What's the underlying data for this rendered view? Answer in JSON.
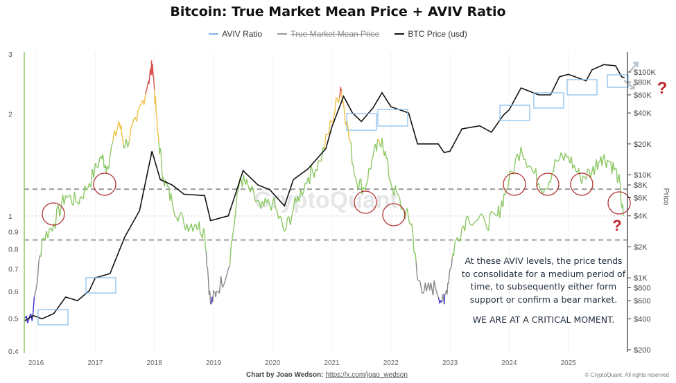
{
  "title": "Bitcoin: True Market Mean Price + AVIV Ratio",
  "legend": [
    {
      "label": "AVIV Ratio",
      "color": "#7fb2e5",
      "active": true
    },
    {
      "label": "True Market Mean Price",
      "color": "#999999",
      "active": false
    },
    {
      "label": "BTC Price (usd)",
      "color": "#111111",
      "active": true
    }
  ],
  "watermark": "CryptoQuant",
  "annotation": {
    "text": "At these AVIV levels, the price tends to consolidate for a medium period of time, to subsequently either form support or confirm a bear market.",
    "emphasis": "WE ARE AT A CRITICAL MOMENT."
  },
  "question_mark": "?",
  "footer": {
    "credit": "Chart by Joao Wedson:",
    "link": "https://x.com/joao_wedson",
    "copyright": "© CryptoQuant. All rights reserved"
  },
  "chart_data": {
    "type": "line",
    "title": "Bitcoin: True Market Mean Price + AVIV Ratio",
    "x_ticks": [
      "2016",
      "2017",
      "2018",
      "2019",
      "2020",
      "2021",
      "2022",
      "2023",
      "2024",
      "2025"
    ],
    "xlim": [
      2015.8,
      2026.0
    ],
    "left_axis": {
      "scale": "log",
      "ylim": [
        0.4,
        3
      ],
      "ticks": [
        "3",
        "2",
        "1",
        "0.9",
        "0.8",
        "0.7",
        "0.6",
        "0.5",
        "0.4"
      ],
      "tick_values": [
        3,
        2,
        1,
        0.9,
        0.8,
        0.7,
        0.6,
        0.5,
        0.4
      ]
    },
    "right_axis": {
      "label": "Price",
      "scale": "log",
      "ylim": [
        200,
        100000
      ],
      "ticks": [
        "$100K",
        "$80K",
        "$60K",
        "$40K",
        "$20K",
        "$10K",
        "$8K",
        "$6K",
        "$4K",
        "$2K",
        "$1K",
        "$800",
        "$600",
        "$400",
        "$200"
      ],
      "tick_values": [
        100000,
        80000,
        60000,
        40000,
        20000,
        10000,
        8000,
        6000,
        4000,
        2000,
        1000,
        800,
        600,
        400,
        200
      ]
    },
    "reference_lines": [
      {
        "value": 1.2,
        "style": "dashed"
      },
      {
        "value": 0.85,
        "style": "dashed"
      },
      {
        "value": 1.0,
        "style": "dotted"
      }
    ],
    "aviv_color_bands": [
      {
        "min": 2.3,
        "color": "#d9534f"
      },
      {
        "min": 1.65,
        "color": "#f0c040"
      },
      {
        "min": 0.75,
        "color": "#8cc864"
      },
      {
        "min": 0.57,
        "color": "#888888"
      },
      {
        "min": 0,
        "color": "#3a2fd0"
      }
    ],
    "series": [
      {
        "name": "BTC Price (usd)",
        "axis": "right",
        "color": "#111111",
        "x": [
          2015.8,
          2015.95,
          2016.1,
          2016.3,
          2016.5,
          2016.7,
          2016.9,
          2017.0,
          2017.25,
          2017.5,
          2017.75,
          2017.96,
          2018.1,
          2018.3,
          2018.5,
          2018.85,
          2018.95,
          2019.25,
          2019.5,
          2019.75,
          2019.95,
          2020.2,
          2020.35,
          2020.6,
          2020.9,
          2021.0,
          2021.2,
          2021.35,
          2021.5,
          2021.7,
          2021.85,
          2022.0,
          2022.3,
          2022.45,
          2022.8,
          2022.9,
          2023.0,
          2023.2,
          2023.5,
          2023.7,
          2023.9,
          2024.0,
          2024.2,
          2024.5,
          2024.7,
          2024.85,
          2025.0,
          2025.3,
          2025.4,
          2025.6,
          2025.8,
          2025.9,
          2025.95
        ],
        "values": [
          380,
          430,
          400,
          450,
          650,
          600,
          750,
          1000,
          1100,
          2500,
          4500,
          17000,
          9000,
          8000,
          6500,
          6300,
          3600,
          4000,
          11000,
          8000,
          7200,
          5000,
          9000,
          11500,
          18000,
          29000,
          58000,
          40000,
          33000,
          45000,
          63000,
          46000,
          40000,
          20000,
          20000,
          16500,
          17000,
          28000,
          30000,
          26000,
          38000,
          43000,
          70000,
          60000,
          60000,
          90000,
          95000,
          82000,
          105000,
          118000,
          115000,
          90000,
          88000
        ]
      },
      {
        "name": "AVIV Ratio",
        "axis": "left",
        "x": [
          2015.8,
          2015.95,
          2016.1,
          2016.3,
          2016.5,
          2016.7,
          2016.9,
          2017.1,
          2017.2,
          2017.4,
          2017.5,
          2017.7,
          2017.9,
          2017.97,
          2018.05,
          2018.15,
          2018.3,
          2018.5,
          2018.7,
          2018.85,
          2018.95,
          2019.05,
          2019.25,
          2019.45,
          2019.6,
          2019.8,
          2020.0,
          2020.2,
          2020.4,
          2020.6,
          2020.8,
          2021.0,
          2021.15,
          2021.25,
          2021.4,
          2021.55,
          2021.7,
          2021.85,
          2022.0,
          2022.2,
          2022.35,
          2022.45,
          2022.6,
          2022.75,
          2022.9,
          2023.0,
          2023.1,
          2023.3,
          2023.6,
          2023.8,
          2023.95,
          2024.2,
          2024.4,
          2024.6,
          2024.8,
          2025.0,
          2025.2,
          2025.4,
          2025.55,
          2025.7,
          2025.85,
          2025.93
        ],
        "values": [
          0.5,
          0.52,
          0.85,
          0.95,
          1.15,
          1.1,
          1.25,
          1.5,
          1.4,
          1.9,
          1.6,
          1.9,
          2.5,
          2.8,
          1.8,
          1.3,
          1.1,
          0.95,
          0.95,
          0.9,
          0.55,
          0.6,
          0.7,
          1.3,
          1.2,
          1.05,
          1.1,
          0.9,
          1.1,
          1.3,
          1.45,
          1.9,
          2.4,
          1.9,
          1.3,
          1.2,
          1.5,
          1.7,
          1.25,
          1.05,
          0.95,
          0.65,
          0.6,
          0.62,
          0.55,
          0.7,
          0.85,
          1.0,
          0.95,
          1.0,
          1.2,
          1.6,
          1.35,
          1.2,
          1.45,
          1.5,
          1.3,
          1.35,
          1.5,
          1.45,
          1.3,
          1.0
        ]
      }
    ]
  }
}
